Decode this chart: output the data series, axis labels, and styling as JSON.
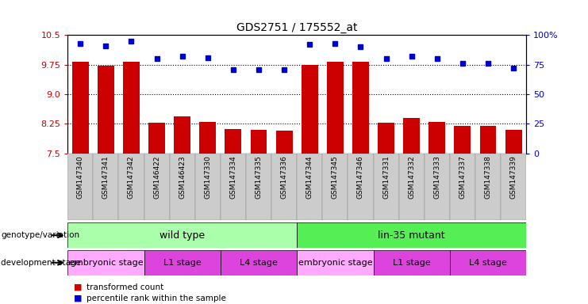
{
  "title": "GDS2751 / 175552_at",
  "samples": [
    "GSM147340",
    "GSM147341",
    "GSM147342",
    "GSM146422",
    "GSM146423",
    "GSM147330",
    "GSM147334",
    "GSM147335",
    "GSM147336",
    "GSM147344",
    "GSM147345",
    "GSM147346",
    "GSM147331",
    "GSM147332",
    "GSM147333",
    "GSM147337",
    "GSM147338",
    "GSM147339"
  ],
  "bar_values": [
    9.82,
    9.72,
    9.83,
    8.28,
    8.43,
    8.3,
    8.12,
    8.1,
    8.07,
    9.75,
    9.82,
    9.82,
    8.28,
    8.4,
    8.3,
    8.2,
    8.2,
    8.1
  ],
  "percentile_values": [
    93,
    91,
    95,
    80,
    82,
    81,
    71,
    71,
    71,
    92,
    93,
    90,
    80,
    82,
    80,
    76,
    76,
    72
  ],
  "ylim_left": [
    7.5,
    10.5
  ],
  "ylim_right": [
    0,
    100
  ],
  "yticks_left": [
    7.5,
    8.25,
    9.0,
    9.75,
    10.5
  ],
  "yticks_right": [
    0,
    25,
    50,
    75,
    100
  ],
  "bar_color": "#cc0000",
  "dot_color": "#0000cc",
  "xtick_bg": "#cccccc",
  "genotype_groups": [
    {
      "label": "wild type",
      "start": 0,
      "end": 9,
      "color": "#aaffaa"
    },
    {
      "label": "lin-35 mutant",
      "start": 9,
      "end": 18,
      "color": "#55ee55"
    }
  ],
  "stage_groups": [
    {
      "label": "embryonic stage",
      "start": 0,
      "end": 3,
      "color": "#ffaaff"
    },
    {
      "label": "L1 stage",
      "start": 3,
      "end": 6,
      "color": "#dd44dd"
    },
    {
      "label": "L4 stage",
      "start": 6,
      "end": 9,
      "color": "#dd44dd"
    },
    {
      "label": "embryonic stage",
      "start": 9,
      "end": 12,
      "color": "#ffaaff"
    },
    {
      "label": "L1 stage",
      "start": 12,
      "end": 15,
      "color": "#dd44dd"
    },
    {
      "label": "L4 stage",
      "start": 15,
      "end": 18,
      "color": "#dd44dd"
    }
  ],
  "legend_bar_label": "transformed count",
  "legend_dot_label": "percentile rank within the sample"
}
